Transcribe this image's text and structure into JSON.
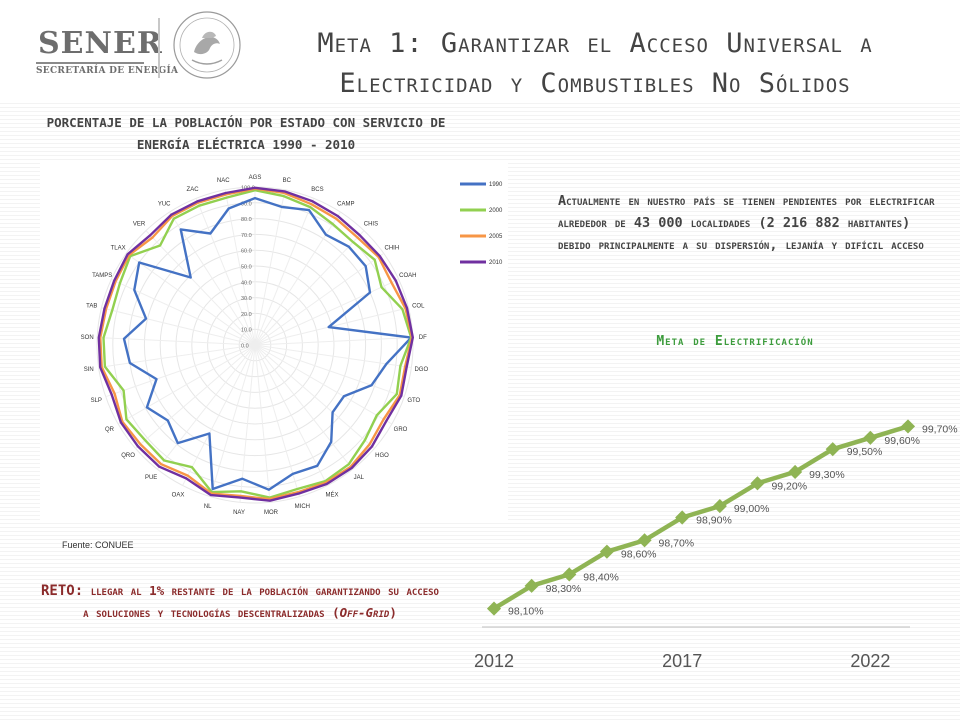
{
  "header": {
    "logo": "SENER",
    "logo_sub": "SECRETARÍA DE ENERGÍA",
    "title_line1": "Meta 1: Garantizar el Acceso Universal a",
    "title_line2": "Electricidad y Combustibles No Sólidos"
  },
  "radar": {
    "title": "Porcentaje de la población por estado con servicio de energía eléctrica 1990 - 2010",
    "source": "Fuente: CONUEE"
  },
  "reto": {
    "lead": "RETO:",
    "text": "llegar al 1% restante de la población garantizando su acceso a soluciones y tecnologías descentralizadas (",
    "italic": "Off-Grid",
    "end": ")"
  },
  "description": "Actualmente en nuestro país se tienen pendientes por electrificar alrededor de 43 000 localidades (2 216 882 habitantes) debido principalmente a su dispersión, lejanía y difícil acceso",
  "meta_title": "Meta de Electrificación",
  "chart_data": [
    {
      "type": "radar",
      "categories": [
        "AGS",
        "BC",
        "BCS",
        "CAMP",
        "CHIS",
        "CHIH",
        "COAH",
        "COL",
        "DF",
        "DGO",
        "GTO",
        "GRO",
        "HGO",
        "JAL",
        "MÉX",
        "MICH",
        "MOR",
        "NAY",
        "NL",
        "OAX",
        "PUE",
        "QRO",
        "QR",
        "SLP",
        "SIN",
        "SON",
        "TAB",
        "TAMPS",
        "TLAX",
        "VER",
        "YUC",
        "ZAC",
        "NAC"
      ],
      "rlim": [
        0,
        100
      ],
      "rticks": [
        "0.0",
        "10.0",
        "20.0",
        "30.0",
        "40.0",
        "50.0",
        "60.0",
        "70.0",
        "80.0",
        "90.0",
        "100.0"
      ],
      "legend_position": "right",
      "series": [
        {
          "name": "1990",
          "color": "#4472c4",
          "values": [
            93,
            89,
            92,
            83,
            86,
            86,
            80,
            48,
            99,
            84,
            78,
            65,
            65,
            78,
            86,
            85,
            92,
            85,
            95,
            63,
            79,
            73,
            79,
            66,
            80,
            83,
            71,
            84,
            90,
            59,
            87,
            76,
            88
          ]
        },
        {
          "name": "2000",
          "color": "#92d050",
          "values": [
            98,
            96,
            94,
            91,
            90,
            93,
            88,
            96,
            99,
            93,
            95,
            89,
            92,
            96,
            97,
            95,
            97,
            93,
            97,
            87,
            93,
            92,
            94,
            88,
            96,
            96,
            93,
            94,
            97,
            87,
            95,
            95,
            95
          ]
        },
        {
          "name": "2005",
          "color": "#f79646",
          "values": [
            99,
            98,
            96,
            95,
            94,
            96,
            95,
            98,
            99.5,
            96,
            97,
            94,
            96,
            98,
            98,
            97,
            98,
            96,
            98,
            93,
            96,
            96,
            97,
            94,
            98,
            98,
            97,
            97,
            98,
            94,
            97,
            97,
            97
          ]
        },
        {
          "name": "2010",
          "color": "#7030a0",
          "values": [
            99.5,
            99,
            98,
            97,
            96,
            97,
            98,
            99,
            100,
            97,
            98,
            96,
            98,
            99,
            99,
            98,
            99,
            97,
            99,
            95,
            98,
            98,
            98,
            96,
            99,
            99,
            98,
            98,
            99,
            96,
            98,
            98,
            98
          ]
        }
      ]
    },
    {
      "type": "line",
      "title": "Meta de Electrificación",
      "x": [
        2012,
        2013,
        2014,
        2015,
        2016,
        2017,
        2018,
        2019,
        2020,
        2021,
        2022,
        2023
      ],
      "xticks": [
        "2012",
        "2017",
        "2022"
      ],
      "values": [
        98.1,
        98.3,
        98.4,
        98.6,
        98.7,
        98.9,
        99.0,
        99.2,
        99.3,
        99.5,
        99.6,
        99.7
      ],
      "labels": [
        "98,10%",
        "98,30%",
        "98,40%",
        "98,60%",
        "98,70%",
        "98,90%",
        "99,00%",
        "99,20%",
        "99,30%",
        "99,50%",
        "99,60%",
        "99,70%"
      ],
      "ylim": [
        98.0,
        99.8
      ],
      "color": "#8fb454"
    }
  ]
}
